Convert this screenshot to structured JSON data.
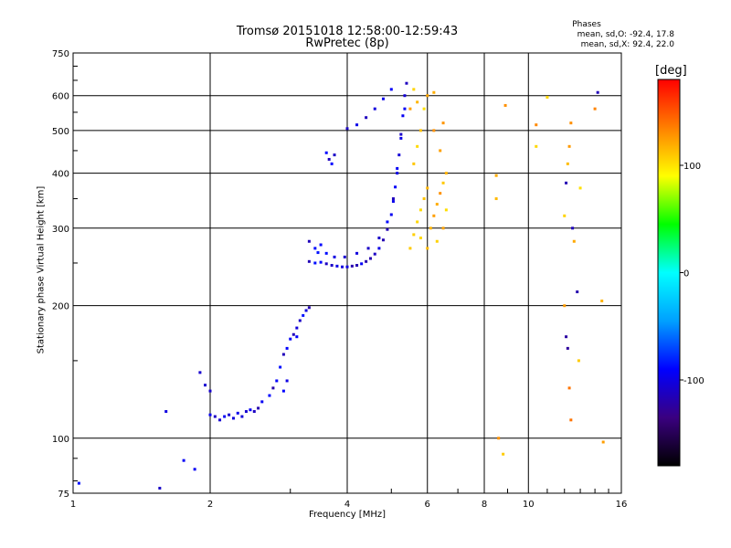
{
  "header": {
    "title_line1": "Tromsø 20151018 12:58:00-12:59:43",
    "title_line2": "RwPretec (8p)",
    "phases_title": "Phases",
    "stats_o": "mean, sd,O: -92.4, 17.8",
    "stats_x": "mean, sd,X:  92.4, 22.0"
  },
  "colorbar": {
    "unit": "[deg]",
    "ticks": [
      "100",
      "0",
      "-100"
    ],
    "tick_values": [
      100,
      0,
      -100
    ],
    "range": [
      -180,
      180
    ],
    "colors": [
      "#000000",
      "#3a0080",
      "#0000ff",
      "#00a0ff",
      "#00ffff",
      "#00ff00",
      "#ffff00",
      "#ff8000",
      "#ff0000"
    ]
  },
  "chart_data": {
    "type": "scatter",
    "title": "Tromsø 20151018 12:58:00-12:59:43",
    "subtitle": "RwPretec (8p)",
    "xlabel": "Frequency [MHz]",
    "ylabel": "Stationary phase Virtual Height [km]",
    "xscale": "log",
    "yscale": "log",
    "xlim": [
      1,
      16
    ],
    "ylim": [
      75,
      750
    ],
    "xticks": [
      1,
      2,
      4,
      6,
      8,
      10,
      16
    ],
    "xtick_labels": [
      "1",
      "2",
      "4",
      "6",
      "8",
      "10",
      "16"
    ],
    "yticks": [
      75,
      100,
      200,
      300,
      400,
      500,
      600,
      750
    ],
    "ytick_labels": [
      "75",
      "100",
      "200",
      "300",
      "400",
      "500",
      "600",
      "750"
    ],
    "grid": true,
    "colorbar": {
      "label": "[deg]",
      "range": [
        -180,
        180
      ]
    },
    "series": [
      {
        "points": [
          [
            1.03,
            79
          ],
          [
            1.55,
            77
          ],
          [
            1.6,
            115
          ],
          [
            1.75,
            89
          ],
          [
            1.85,
            85
          ]
        ]
      },
      {
        "points": [
          [
            1.9,
            141
          ],
          [
            1.95,
            132
          ],
          [
            2.0,
            128
          ],
          [
            2.0,
            113
          ],
          [
            2.05,
            112
          ],
          [
            2.1,
            110
          ],
          [
            2.15,
            112
          ],
          [
            2.2,
            113
          ],
          [
            2.25,
            111
          ],
          [
            2.3,
            114
          ],
          [
            2.35,
            112
          ],
          [
            2.4,
            115
          ],
          [
            2.45,
            116
          ],
          [
            2.5,
            115
          ],
          [
            2.55,
            117
          ],
          [
            2.6,
            121
          ],
          [
            2.7,
            125
          ],
          [
            2.75,
            130
          ],
          [
            2.8,
            135
          ],
          [
            2.85,
            145
          ],
          [
            2.9,
            155
          ],
          [
            2.95,
            160
          ],
          [
            3.0,
            168
          ],
          [
            3.05,
            172
          ],
          [
            3.1,
            178
          ],
          [
            3.15,
            185
          ],
          [
            3.2,
            190
          ],
          [
            3.25,
            195
          ],
          [
            3.3,
            198
          ],
          [
            2.9,
            128
          ],
          [
            2.95,
            135
          ],
          [
            3.1,
            170
          ]
        ]
      },
      {
        "points": [
          [
            3.3,
            252
          ],
          [
            3.4,
            250
          ],
          [
            3.5,
            251
          ],
          [
            3.6,
            249
          ],
          [
            3.7,
            247
          ],
          [
            3.8,
            246
          ],
          [
            3.9,
            245
          ],
          [
            4.0,
            245
          ],
          [
            4.1,
            246
          ],
          [
            4.2,
            247
          ],
          [
            4.3,
            249
          ],
          [
            4.4,
            252
          ],
          [
            4.5,
            256
          ],
          [
            4.6,
            262
          ],
          [
            4.7,
            270
          ],
          [
            4.8,
            282
          ],
          [
            4.9,
            298
          ],
          [
            5.0,
            322
          ],
          [
            5.05,
            345
          ],
          [
            5.1,
            372
          ],
          [
            5.15,
            400
          ],
          [
            5.2,
            440
          ],
          [
            5.25,
            490
          ],
          [
            5.3,
            540
          ],
          [
            5.35,
            600
          ],
          [
            5.4,
            640
          ],
          [
            3.4,
            270
          ],
          [
            3.5,
            275
          ],
          [
            3.3,
            280
          ],
          [
            3.45,
            264
          ],
          [
            3.6,
            263
          ],
          [
            3.75,
            258
          ],
          [
            3.95,
            258
          ],
          [
            4.2,
            263
          ],
          [
            4.45,
            270
          ],
          [
            4.7,
            285
          ],
          [
            4.9,
            310
          ],
          [
            5.05,
            350
          ],
          [
            5.15,
            410
          ],
          [
            5.25,
            480
          ],
          [
            5.35,
            560
          ],
          [
            3.6,
            445
          ],
          [
            3.65,
            430
          ],
          [
            3.75,
            440
          ],
          [
            3.7,
            420
          ],
          [
            4.0,
            505
          ],
          [
            4.2,
            515
          ],
          [
            4.4,
            535
          ],
          [
            4.6,
            560
          ],
          [
            4.8,
            590
          ],
          [
            5.0,
            620
          ]
        ]
      },
      {
        "points": [
          [
            5.5,
            270
          ],
          [
            5.6,
            290
          ],
          [
            5.7,
            310
          ],
          [
            5.8,
            330
          ],
          [
            5.9,
            350
          ],
          [
            6.0,
            370
          ],
          [
            6.1,
            300
          ],
          [
            6.2,
            320
          ],
          [
            6.3,
            340
          ],
          [
            6.4,
            360
          ],
          [
            6.5,
            380
          ],
          [
            6.6,
            400
          ],
          [
            5.6,
            420
          ],
          [
            5.7,
            460
          ],
          [
            5.8,
            500
          ],
          [
            5.9,
            560
          ],
          [
            6.0,
            600
          ],
          [
            6.2,
            500
          ],
          [
            6.4,
            450
          ],
          [
            6.5,
            520
          ],
          [
            5.5,
            560
          ],
          [
            5.7,
            580
          ],
          [
            6.3,
            280
          ],
          [
            6.5,
            300
          ],
          [
            6.6,
            330
          ],
          [
            6.0,
            270
          ],
          [
            5.8,
            285
          ],
          [
            5.6,
            620
          ],
          [
            6.2,
            610
          ]
        ]
      },
      {
        "points": [
          [
            8.5,
            395
          ],
          [
            8.5,
            350
          ],
          [
            8.6,
            100
          ],
          [
            8.8,
            92
          ],
          [
            8.9,
            570
          ],
          [
            10.4,
            515
          ],
          [
            10.4,
            460
          ],
          [
            11.0,
            595
          ],
          [
            12.0,
            320
          ],
          [
            12.1,
            380
          ],
          [
            12.2,
            420
          ],
          [
            12.3,
            460
          ],
          [
            12.4,
            520
          ],
          [
            12.5,
            300
          ],
          [
            12.0,
            200
          ],
          [
            12.1,
            170
          ],
          [
            12.2,
            160
          ],
          [
            12.3,
            130
          ],
          [
            12.4,
            110
          ],
          [
            12.6,
            280
          ],
          [
            12.8,
            215
          ],
          [
            12.9,
            150
          ],
          [
            13.0,
            370
          ],
          [
            14.0,
            560
          ],
          [
            14.2,
            610
          ],
          [
            14.5,
            205
          ],
          [
            14.6,
            98
          ]
        ]
      }
    ]
  }
}
